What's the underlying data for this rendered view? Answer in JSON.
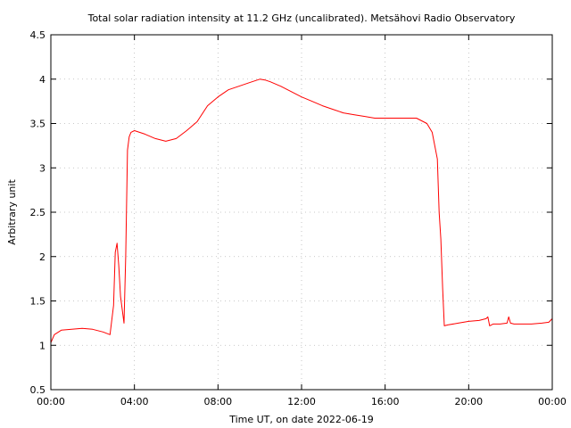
{
  "chart_data": {
    "type": "line",
    "title": "Total solar radiation intensity at 11.2 GHz (uncalibrated). Metsähovi Radio Observatory",
    "xlabel": "Time UT, on date 2022-06-19",
    "ylabel": "Arbitrary unit",
    "xlim": [
      "00:00",
      "24:00"
    ],
    "ylim": [
      0.5,
      4.5
    ],
    "x_ticks": [
      "00:00",
      "04:00",
      "08:00",
      "12:00",
      "16:00",
      "20:00",
      "00:00"
    ],
    "y_ticks": [
      "0.5",
      "1",
      "1.5",
      "2",
      "2.5",
      "3",
      "3.5",
      "4",
      "4.5"
    ],
    "grid": true,
    "legend": "none",
    "line_color": "#ff0000",
    "series": [
      {
        "x": [
          "00:00",
          "00:10",
          "00:30",
          "01:00",
          "01:30",
          "02:00",
          "02:30",
          "02:50",
          "03:00",
          "03:05",
          "03:10",
          "03:15",
          "03:20",
          "03:30",
          "03:35",
          "03:40",
          "03:45",
          "03:50",
          "04:00",
          "04:30",
          "05:00",
          "05:30",
          "06:00",
          "06:30",
          "07:00",
          "07:30",
          "08:00",
          "08:30",
          "09:00",
          "09:30",
          "10:00",
          "10:15",
          "10:30",
          "11:00",
          "11:30",
          "12:00",
          "12:30",
          "13:00",
          "13:30",
          "14:00",
          "14:30",
          "15:00",
          "15:30",
          "16:00",
          "16:30",
          "17:00",
          "17:30",
          "18:00",
          "18:15",
          "18:30",
          "18:35",
          "18:40",
          "18:45",
          "18:50",
          "19:00",
          "19:30",
          "20:00",
          "20:30",
          "20:50",
          "20:55",
          "21:00",
          "21:10",
          "21:30",
          "21:50",
          "21:55",
          "22:00",
          "22:10",
          "22:30",
          "23:00",
          "23:30",
          "23:50",
          "24:00"
        ],
        "y": [
          1.03,
          1.12,
          1.17,
          1.18,
          1.19,
          1.18,
          1.15,
          1.12,
          1.45,
          2.05,
          2.15,
          1.9,
          1.55,
          1.25,
          2.0,
          3.2,
          3.35,
          3.4,
          3.42,
          3.38,
          3.33,
          3.3,
          3.33,
          3.42,
          3.52,
          3.7,
          3.8,
          3.88,
          3.92,
          3.96,
          4.0,
          3.99,
          3.97,
          3.92,
          3.86,
          3.8,
          3.75,
          3.7,
          3.66,
          3.62,
          3.6,
          3.58,
          3.56,
          3.56,
          3.56,
          3.56,
          3.56,
          3.5,
          3.4,
          3.1,
          2.5,
          2.2,
          1.65,
          1.22,
          1.23,
          1.25,
          1.27,
          1.28,
          1.3,
          1.32,
          1.22,
          1.24,
          1.24,
          1.25,
          1.32,
          1.25,
          1.24,
          1.24,
          1.24,
          1.25,
          1.26,
          1.3
        ]
      }
    ]
  }
}
